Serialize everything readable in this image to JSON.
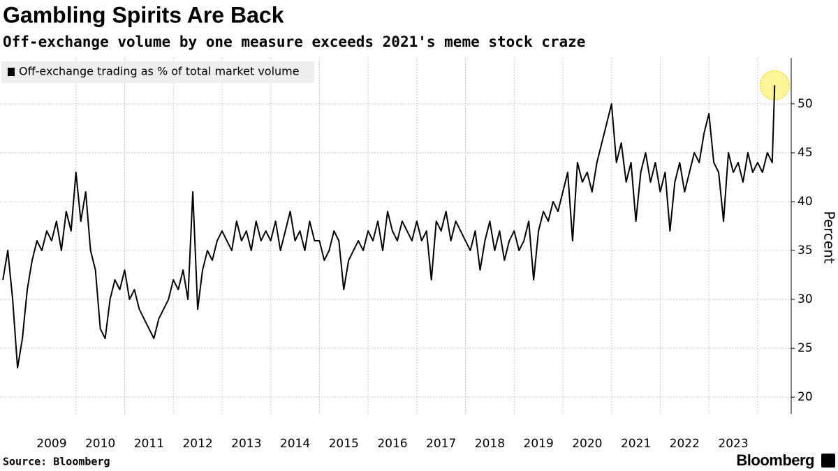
{
  "chart_data": {
    "type": "line",
    "title": "Gambling Spirits Are Back",
    "subtitle": "Off-exchange volume by one measure exceeds 2021's meme stock craze",
    "source": "Source: Bloomberg",
    "brand": "Bloomberg",
    "y_label": "Percent",
    "x": [
      2008.5,
      2008.6,
      2008.7,
      2008.8,
      2008.9,
      2009.0,
      2009.1,
      2009.2,
      2009.3,
      2009.4,
      2009.5,
      2009.6,
      2009.7,
      2009.8,
      2009.9,
      2010.0,
      2010.1,
      2010.2,
      2010.3,
      2010.4,
      2010.5,
      2010.6,
      2010.7,
      2010.8,
      2010.9,
      2011.0,
      2011.1,
      2011.2,
      2011.3,
      2011.4,
      2011.5,
      2011.6,
      2011.7,
      2011.8,
      2011.9,
      2012.0,
      2012.1,
      2012.2,
      2012.3,
      2012.4,
      2012.5,
      2012.6,
      2012.7,
      2012.8,
      2012.9,
      2013.0,
      2013.1,
      2013.2,
      2013.3,
      2013.4,
      2013.5,
      2013.6,
      2013.7,
      2013.8,
      2013.9,
      2014.0,
      2014.1,
      2014.2,
      2014.3,
      2014.4,
      2014.5,
      2014.6,
      2014.7,
      2014.8,
      2014.9,
      2015.0,
      2015.1,
      2015.2,
      2015.3,
      2015.4,
      2015.5,
      2015.6,
      2015.7,
      2015.8,
      2015.9,
      2016.0,
      2016.1,
      2016.2,
      2016.3,
      2016.4,
      2016.5,
      2016.6,
      2016.7,
      2016.8,
      2016.9,
      2017.0,
      2017.1,
      2017.2,
      2017.3,
      2017.4,
      2017.5,
      2017.6,
      2017.7,
      2017.8,
      2017.9,
      2018.0,
      2018.1,
      2018.2,
      2018.3,
      2018.4,
      2018.5,
      2018.6,
      2018.7,
      2018.8,
      2018.9,
      2019.0,
      2019.1,
      2019.2,
      2019.3,
      2019.4,
      2019.5,
      2019.6,
      2019.7,
      2019.8,
      2019.9,
      2020.0,
      2020.1,
      2020.2,
      2020.3,
      2020.4,
      2020.5,
      2020.6,
      2020.7,
      2020.8,
      2020.9,
      2021.0,
      2021.1,
      2021.2,
      2021.3,
      2021.4,
      2021.5,
      2021.6,
      2021.7,
      2021.8,
      2021.9,
      2022.0,
      2022.1,
      2022.2,
      2022.3,
      2022.4,
      2022.5,
      2022.6,
      2022.7,
      2022.8,
      2022.9,
      2023.0,
      2023.1,
      2023.2,
      2023.3,
      2023.4,
      2023.5,
      2023.6,
      2023.7,
      2023.8,
      2023.9,
      2024.0,
      2024.1,
      2024.2,
      2024.3,
      2024.35
    ],
    "series": [
      {
        "name": "Off-exchange trading as % of total market volume",
        "color": "#000000",
        "values": [
          32,
          35,
          30,
          23,
          26,
          31,
          34,
          36,
          35,
          37,
          36,
          38,
          35,
          39,
          37,
          43,
          38,
          41,
          35,
          33,
          27,
          26,
          30,
          32,
          31,
          33,
          30,
          31,
          29,
          28,
          27,
          26,
          28,
          29,
          30,
          32,
          31,
          33,
          30,
          41,
          29,
          33,
          35,
          34,
          36,
          37,
          36,
          35,
          38,
          36,
          37,
          35,
          38,
          36,
          37,
          36,
          38,
          35,
          37,
          39,
          36,
          37,
          35,
          38,
          36,
          36,
          34,
          35,
          37,
          36,
          31,
          34,
          35,
          36,
          35,
          37,
          36,
          38,
          35,
          39,
          37,
          36,
          38,
          37,
          36,
          38,
          36,
          37,
          32,
          38,
          37,
          39,
          36,
          38,
          37,
          36,
          35,
          37,
          33,
          36,
          38,
          35,
          37,
          34,
          36,
          37,
          35,
          36,
          38,
          32,
          37,
          39,
          38,
          40,
          39,
          41,
          43,
          36,
          44,
          42,
          43,
          41,
          44,
          46,
          48,
          50,
          44,
          46,
          42,
          44,
          38,
          43,
          45,
          42,
          44,
          41,
          43,
          37,
          42,
          44,
          41,
          43,
          45,
          44,
          47,
          49,
          44,
          43,
          38,
          45,
          43,
          44,
          42,
          45,
          43,
          44,
          43,
          45,
          44,
          51.9
        ]
      }
    ],
    "xlim": [
      2008.44,
      2024.69
    ],
    "xticks": [
      {
        "value": 2009.5,
        "label": "2009"
      },
      {
        "value": 2010.5,
        "label": "2010"
      },
      {
        "value": 2011.5,
        "label": "2011"
      },
      {
        "value": 2012.5,
        "label": "2012"
      },
      {
        "value": 2013.5,
        "label": "2013"
      },
      {
        "value": 2014.5,
        "label": "2014"
      },
      {
        "value": 2015.5,
        "label": "2015"
      },
      {
        "value": 2016.5,
        "label": "2016"
      },
      {
        "value": 2017.5,
        "label": "2017"
      },
      {
        "value": 2018.5,
        "label": "2018"
      },
      {
        "value": 2019.5,
        "label": "2019"
      },
      {
        "value": 2020.5,
        "label": "2020"
      },
      {
        "value": 2021.5,
        "label": "2021"
      },
      {
        "value": 2022.5,
        "label": "2022"
      },
      {
        "value": 2023.5,
        "label": "2023"
      }
    ],
    "xgrid": [
      2010,
      2011,
      2012,
      2013,
      2014,
      2015,
      2016,
      2017,
      2018,
      2019,
      2020,
      2021,
      2022,
      2023,
      2024
    ],
    "ylim": [
      18.3,
      54.7
    ],
    "yticks": [
      20,
      25,
      30,
      35,
      40,
      45,
      50
    ],
    "grid": true,
    "highlight_color": "#fff176"
  }
}
